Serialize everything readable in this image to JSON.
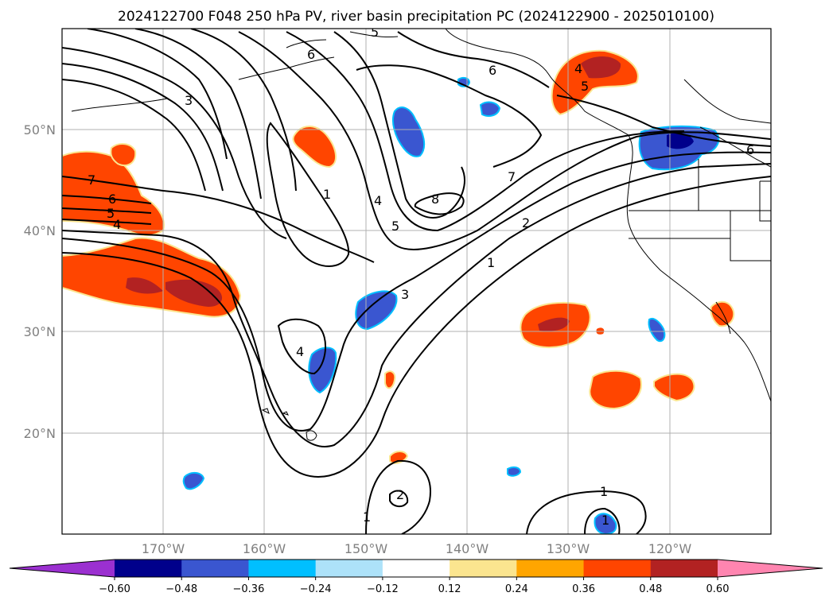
{
  "title": "2024122700 F048 250 hPa PV, river basin precipitation PC (2024122900 - 2025010100)",
  "axes": {
    "lat_labels": [
      "50°N",
      "40°N",
      "30°N",
      "20°N"
    ],
    "lon_labels": [
      "170°W",
      "160°W",
      "150°W",
      "140°W",
      "130°W",
      "120°W"
    ]
  },
  "colorbar": {
    "ticks": [
      "−0.60",
      "−0.48",
      "−0.36",
      "−0.24",
      "−0.12",
      "0.12",
      "0.24",
      "0.36",
      "0.48",
      "0.60"
    ],
    "colors": [
      "#9b30d0",
      "#00008b",
      "#3a56d0",
      "#00bfff",
      "#ade2f9",
      "#ffffff",
      "#fbe58f",
      "#ffa500",
      "#ff4500",
      "#b22222",
      "#ff85b0"
    ]
  },
  "contour_labels": {
    "west_7": "7",
    "west_6": "6",
    "west_5": "5",
    "west_4": "4",
    "nw_3": "3",
    "top_5": "5",
    "top_6": "6",
    "ak_6": "6",
    "c_1": "1",
    "c_4": "4",
    "c_5": "5",
    "c_8": "8",
    "c_7": "7",
    "c_2": "2",
    "c_1b": "1",
    "c_3": "3",
    "c_4b": "4",
    "ne_6": "6",
    "can_4": "4",
    "can_5": "5",
    "s_2": "2",
    "s_1": "1",
    "se_1": "1",
    "se_1b": "1"
  }
}
